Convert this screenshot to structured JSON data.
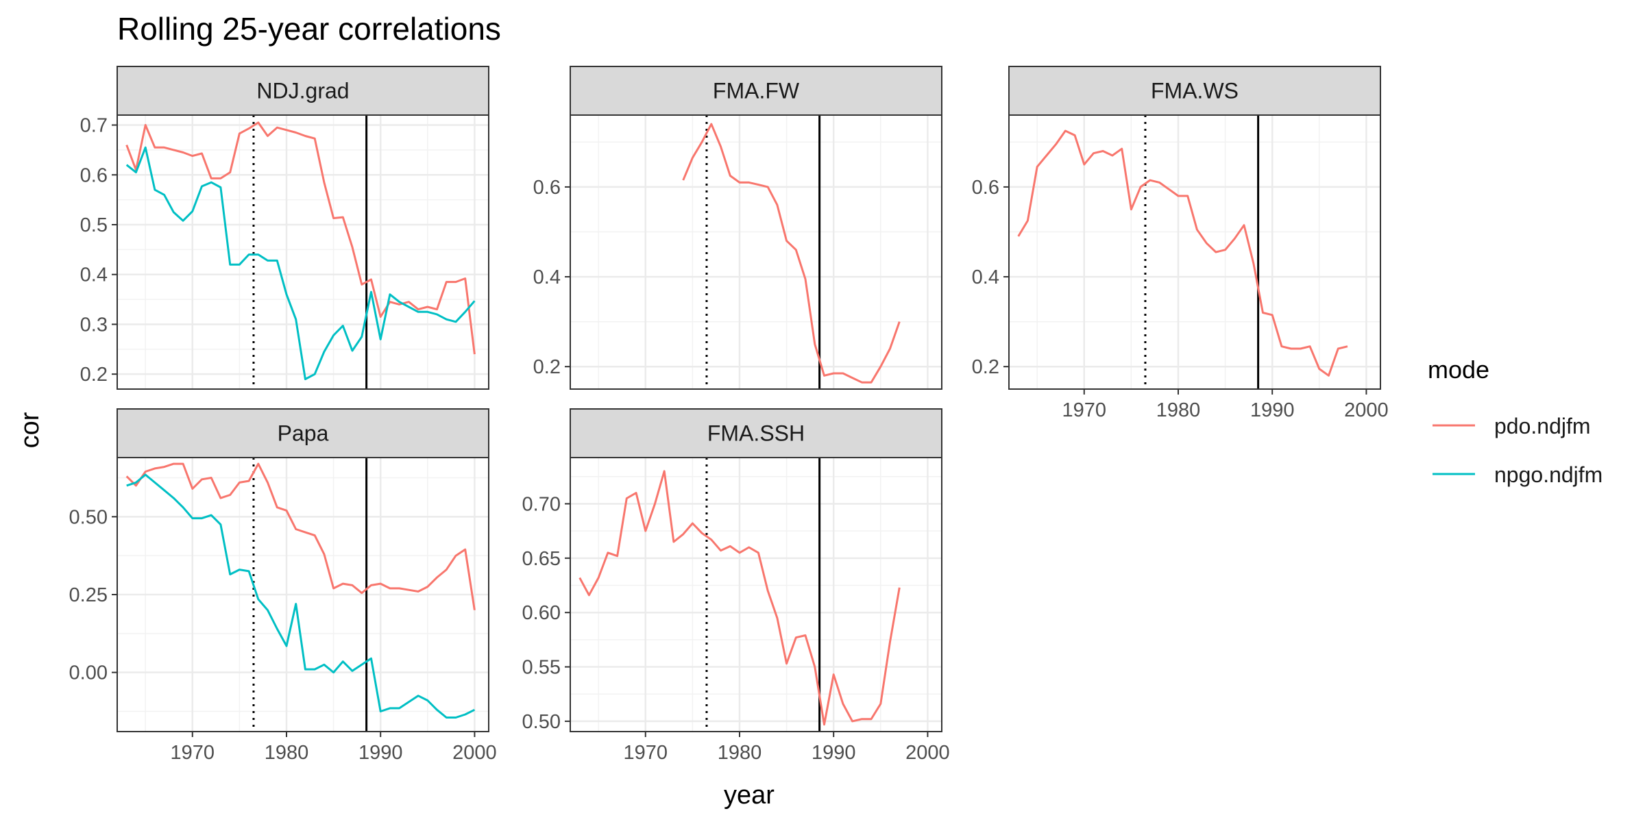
{
  "title": "Rolling 25-year correlations",
  "xlabel": "year",
  "ylabel": "cor",
  "legend": {
    "title": "mode",
    "items": [
      {
        "label": "pdo.ndjfm",
        "color": "#F8766D"
      },
      {
        "label": "npgo.ndjfm",
        "color": "#00BFC4"
      }
    ]
  },
  "chart_data": {
    "type": "line",
    "title": "Rolling 25-year correlations",
    "xlabel": "year",
    "ylabel": "cor",
    "xlim": [
      1962,
      2001.5
    ],
    "x_ticks": [
      1970,
      1980,
      1990,
      2000
    ],
    "x_tick_labels": [
      "1970",
      "1980",
      "1990",
      "2000"
    ],
    "grid": true,
    "legend_position": "right",
    "vertical_lines": [
      {
        "x": 1976.5,
        "style": "dotted"
      },
      {
        "x": 1988.5,
        "style": "solid"
      }
    ],
    "panels": [
      {
        "strip": "NDJ.grad",
        "ylim": [
          0.17,
          0.72
        ],
        "y_ticks": [
          0.2,
          0.3,
          0.4,
          0.5,
          0.6,
          0.7
        ],
        "y_tick_labels": [
          "0.2",
          "0.3",
          "0.4",
          "0.5",
          "0.6",
          "0.7"
        ],
        "series": [
          {
            "name": "pdo.ndjfm",
            "x": [
              1963,
              1964,
              1965,
              1966,
              1967,
              1968,
              1969,
              1970,
              1971,
              1972,
              1973,
              1974,
              1975,
              1976,
              1977,
              1978,
              1979,
              1980,
              1981,
              1982,
              1983,
              1984,
              1985,
              1986,
              1987,
              1988,
              1989,
              1990,
              1991,
              1992,
              1993,
              1994,
              1995,
              1996,
              1997,
              1998,
              1999,
              2000
            ],
            "values": [
              0.66,
              0.61,
              0.7,
              0.655,
              0.655,
              0.65,
              0.645,
              0.638,
              0.643,
              0.593,
              0.593,
              0.605,
              0.683,
              0.693,
              0.705,
              0.678,
              0.695,
              0.69,
              0.685,
              0.678,
              0.673,
              0.585,
              0.513,
              0.515,
              0.455,
              0.38,
              0.39,
              0.315,
              0.345,
              0.34,
              0.345,
              0.33,
              0.335,
              0.33,
              0.385,
              0.385,
              0.392,
              0.24
            ]
          },
          {
            "name": "npgo.ndjfm",
            "x": [
              1963,
              1964,
              1965,
              1966,
              1967,
              1968,
              1969,
              1970,
              1971,
              1972,
              1973,
              1974,
              1975,
              1976,
              1977,
              1978,
              1979,
              1980,
              1981,
              1982,
              1983,
              1984,
              1985,
              1986,
              1987,
              1988,
              1989,
              1990,
              1991,
              1992,
              1993,
              1994,
              1995,
              1996,
              1997,
              1998,
              1999,
              2000
            ],
            "values": [
              0.62,
              0.605,
              0.655,
              0.57,
              0.56,
              0.525,
              0.508,
              0.527,
              0.577,
              0.585,
              0.575,
              0.42,
              0.42,
              0.44,
              0.44,
              0.428,
              0.428,
              0.36,
              0.31,
              0.19,
              0.2,
              0.245,
              0.278,
              0.297,
              0.247,
              0.275,
              0.365,
              0.27,
              0.36,
              0.345,
              0.335,
              0.325,
              0.325,
              0.32,
              0.31,
              0.305,
              0.325,
              0.347
            ]
          }
        ]
      },
      {
        "strip": "FMA.FW",
        "ylim": [
          0.15,
          0.76
        ],
        "y_ticks": [
          0.2,
          0.4,
          0.6
        ],
        "y_tick_labels": [
          "0.2",
          "0.4",
          "0.6"
        ],
        "series": [
          {
            "name": "pdo.ndjfm",
            "x": [
              1974,
              1975,
              1976,
              1977,
              1978,
              1979,
              1980,
              1981,
              1982,
              1983,
              1984,
              1985,
              1986,
              1987,
              1988,
              1989,
              1990,
              1991,
              1992,
              1993,
              1994,
              1995,
              1996,
              1997
            ],
            "values": [
              0.615,
              0.665,
              0.7,
              0.74,
              0.69,
              0.625,
              0.61,
              0.61,
              0.605,
              0.6,
              0.56,
              0.48,
              0.46,
              0.395,
              0.25,
              0.18,
              0.185,
              0.185,
              0.175,
              0.165,
              0.165,
              0.2,
              0.24,
              0.3
            ]
          }
        ]
      },
      {
        "strip": "FMA.WS",
        "ylim": [
          0.15,
          0.76
        ],
        "y_ticks": [
          0.2,
          0.4,
          0.6
        ],
        "y_tick_labels": [
          "0.2",
          "0.4",
          "0.6"
        ],
        "series": [
          {
            "name": "pdo.ndjfm",
            "x": [
              1963,
              1964,
              1965,
              1966,
              1967,
              1968,
              1969,
              1970,
              1971,
              1972,
              1973,
              1974,
              1975,
              1976,
              1977,
              1978,
              1979,
              1980,
              1981,
              1982,
              1983,
              1984,
              1985,
              1986,
              1987,
              1988,
              1989,
              1990,
              1991,
              1992,
              1993,
              1994,
              1995,
              1996,
              1997,
              1998
            ],
            "values": [
              0.49,
              0.525,
              0.645,
              0.67,
              0.695,
              0.725,
              0.715,
              0.65,
              0.675,
              0.68,
              0.67,
              0.685,
              0.55,
              0.6,
              0.615,
              0.61,
              0.595,
              0.58,
              0.58,
              0.505,
              0.475,
              0.455,
              0.46,
              0.485,
              0.515,
              0.43,
              0.32,
              0.315,
              0.245,
              0.24,
              0.24,
              0.245,
              0.195,
              0.18,
              0.24,
              0.245
            ]
          }
        ]
      },
      {
        "strip": "Papa",
        "ylim": [
          -0.19,
          0.69
        ],
        "y_ticks": [
          0.0,
          0.25,
          0.5
        ],
        "y_tick_labels": [
          "0.00",
          "0.25",
          "0.50"
        ],
        "series": [
          {
            "name": "pdo.ndjfm",
            "x": [
              1963,
              1964,
              1965,
              1966,
              1967,
              1968,
              1969,
              1970,
              1971,
              1972,
              1973,
              1974,
              1975,
              1976,
              1977,
              1978,
              1979,
              1980,
              1981,
              1982,
              1983,
              1984,
              1985,
              1986,
              1987,
              1988,
              1989,
              1990,
              1991,
              1992,
              1993,
              1994,
              1995,
              1996,
              1997,
              1998,
              1999,
              2000
            ],
            "values": [
              0.63,
              0.6,
              0.645,
              0.655,
              0.66,
              0.67,
              0.67,
              0.59,
              0.62,
              0.625,
              0.56,
              0.57,
              0.61,
              0.615,
              0.67,
              0.61,
              0.53,
              0.52,
              0.46,
              0.45,
              0.44,
              0.38,
              0.27,
              0.285,
              0.28,
              0.255,
              0.28,
              0.285,
              0.27,
              0.27,
              0.265,
              0.26,
              0.275,
              0.305,
              0.33,
              0.375,
              0.395,
              0.2
            ]
          },
          {
            "name": "npgo.ndjfm",
            "x": [
              1963,
              1964,
              1965,
              1966,
              1967,
              1968,
              1969,
              1970,
              1971,
              1972,
              1973,
              1974,
              1975,
              1976,
              1977,
              1978,
              1979,
              1980,
              1981,
              1982,
              1983,
              1984,
              1985,
              1986,
              1987,
              1988,
              1989,
              1990,
              1991,
              1992,
              1993,
              1994,
              1995,
              1996,
              1997,
              1998,
              1999,
              2000
            ],
            "values": [
              0.6,
              0.61,
              0.635,
              0.61,
              0.585,
              0.56,
              0.53,
              0.495,
              0.495,
              0.505,
              0.475,
              0.315,
              0.33,
              0.325,
              0.235,
              0.2,
              0.14,
              0.085,
              0.22,
              0.01,
              0.01,
              0.025,
              0.0,
              0.035,
              0.005,
              0.025,
              0.045,
              -0.125,
              -0.115,
              -0.115,
              -0.095,
              -0.075,
              -0.09,
              -0.12,
              -0.145,
              -0.145,
              -0.135,
              -0.12
            ]
          }
        ]
      },
      {
        "strip": "FMA.SSH",
        "ylim": [
          0.4905,
          0.7425
        ],
        "y_ticks": [
          0.5,
          0.55,
          0.6,
          0.65,
          0.7
        ],
        "y_tick_labels": [
          "0.50",
          "0.55",
          "0.60",
          "0.65",
          "0.70"
        ],
        "series": [
          {
            "name": "pdo.ndjfm",
            "x": [
              1963,
              1964,
              1965,
              1966,
              1967,
              1968,
              1969,
              1970,
              1971,
              1972,
              1973,
              1974,
              1975,
              1976,
              1977,
              1978,
              1979,
              1980,
              1981,
              1982,
              1983,
              1984,
              1985,
              1986,
              1987,
              1988,
              1989,
              1990,
              1991,
              1992,
              1993,
              1994,
              1995,
              1996,
              1997
            ],
            "values": [
              0.632,
              0.616,
              0.632,
              0.655,
              0.652,
              0.705,
              0.71,
              0.675,
              0.7,
              0.73,
              0.665,
              0.672,
              0.682,
              0.673,
              0.667,
              0.657,
              0.661,
              0.655,
              0.66,
              0.655,
              0.62,
              0.595,
              0.553,
              0.577,
              0.579,
              0.55,
              0.497,
              0.543,
              0.516,
              0.5,
              0.502,
              0.502,
              0.516,
              0.573,
              0.623
            ]
          }
        ]
      }
    ]
  }
}
